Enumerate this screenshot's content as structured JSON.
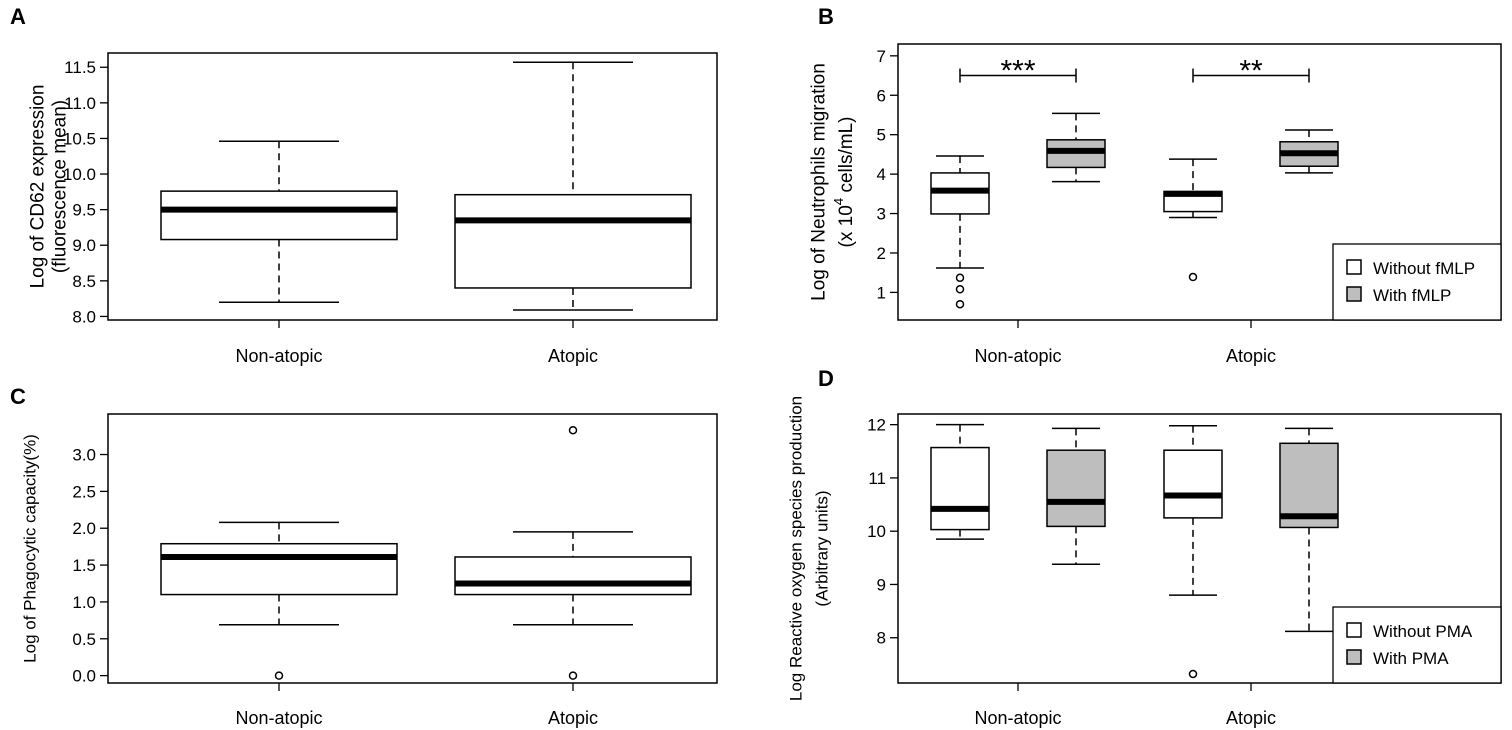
{
  "colors": {
    "white_fill": "#ffffff",
    "gray_fill": "#bebebe",
    "stroke": "#000000"
  },
  "chart_data": [
    {
      "panel": "A",
      "type": "boxplot",
      "ylabel_lines": [
        "Log of CD62 expression",
        "(fluorescence mean)"
      ],
      "categories": [
        "Non-atopic",
        "Atopic"
      ],
      "ylim": [
        7.95,
        11.7
      ],
      "yticks": [
        8.0,
        8.5,
        9.0,
        9.5,
        10.0,
        10.5,
        11.0,
        11.5
      ],
      "ytick_labels": [
        "8.0",
        "8.5",
        "9.0",
        "9.5",
        "10.0",
        "10.5",
        "11.0",
        "11.5"
      ],
      "series": [
        {
          "name": "",
          "fill": "white",
          "boxes": [
            {
              "min": 8.2,
              "q1": 9.08,
              "median": 9.5,
              "q3": 9.76,
              "max": 10.46,
              "outliers": []
            },
            {
              "min": 8.09,
              "q1": 8.4,
              "median": 9.35,
              "q3": 9.71,
              "max": 11.57,
              "outliers": []
            }
          ]
        }
      ],
      "legend": null,
      "annotations": []
    },
    {
      "panel": "B",
      "type": "boxplot",
      "ylabel_lines": [
        "Log of Neutrophils migration",
        "(x 10^4 cells/mL)"
      ],
      "categories": [
        "Non-atopic",
        "Atopic"
      ],
      "ylim": [
        0.3,
        7.3
      ],
      "yticks": [
        1,
        2,
        3,
        4,
        5,
        6,
        7
      ],
      "ytick_labels": [
        "1",
        "2",
        "3",
        "4",
        "5",
        "6",
        "7"
      ],
      "series": [
        {
          "name": "Without fMLP",
          "fill": "white",
          "boxes": [
            {
              "min": 1.62,
              "q1": 2.99,
              "median": 3.58,
              "q3": 4.03,
              "max": 4.46,
              "outliers": [
                1.37,
                1.08,
                0.7
              ]
            },
            {
              "min": 2.9,
              "q1": 3.05,
              "median": 3.5,
              "q3": 3.56,
              "max": 4.38,
              "outliers": [
                1.39
              ]
            }
          ]
        },
        {
          "name": "With fMLP",
          "fill": "gray",
          "boxes": [
            {
              "min": 3.81,
              "q1": 4.17,
              "median": 4.59,
              "q3": 4.87,
              "max": 5.54,
              "outliers": []
            },
            {
              "min": 4.03,
              "q1": 4.2,
              "median": 4.53,
              "q3": 4.82,
              "max": 5.12,
              "outliers": []
            }
          ]
        }
      ],
      "legend": {
        "position": "bottom-right",
        "entries": [
          "Without fMLP",
          "With fMLP"
        ]
      },
      "annotations": [
        {
          "group": 0,
          "text": "***",
          "y": 6.5
        },
        {
          "group": 1,
          "text": "**",
          "y": 6.5
        }
      ]
    },
    {
      "panel": "C",
      "type": "boxplot",
      "ylabel_lines": [
        "Log of Phagocytic capacity(%)"
      ],
      "categories": [
        "Non-atopic",
        "Atopic"
      ],
      "ylim": [
        -0.1,
        3.55
      ],
      "yticks": [
        0.0,
        0.5,
        1.0,
        1.5,
        2.0,
        2.5,
        3.0
      ],
      "ytick_labels": [
        "0.0",
        "0.5",
        "1.0",
        "1.5",
        "2.0",
        "2.5",
        "3.0"
      ],
      "series": [
        {
          "name": "",
          "fill": "white",
          "boxes": [
            {
              "min": 0.69,
              "q1": 1.1,
              "median": 1.61,
              "q3": 1.79,
              "max": 2.08,
              "outliers": [
                0.0
              ]
            },
            {
              "min": 0.69,
              "q1": 1.1,
              "median": 1.25,
              "q3": 1.61,
              "max": 1.95,
              "outliers": [
                3.33,
                0.0
              ]
            }
          ]
        }
      ],
      "legend": null,
      "annotations": []
    },
    {
      "panel": "D",
      "type": "boxplot",
      "ylabel_lines": [
        "Log Reactive oxygen species production",
        "(Arbitrary units)"
      ],
      "categories": [
        "Non-atopic",
        "Atopic"
      ],
      "ylim": [
        7.15,
        12.2
      ],
      "yticks": [
        8,
        9,
        10,
        11,
        12
      ],
      "ytick_labels": [
        "8",
        "9",
        "10",
        "11",
        "12"
      ],
      "series": [
        {
          "name": "Without PMA",
          "fill": "white",
          "boxes": [
            {
              "min": 9.85,
              "q1": 10.03,
              "median": 10.42,
              "q3": 11.57,
              "max": 12.0,
              "outliers": []
            },
            {
              "min": 8.8,
              "q1": 10.25,
              "median": 10.67,
              "q3": 11.52,
              "max": 11.98,
              "outliers": [
                7.32
              ]
            }
          ]
        },
        {
          "name": "With PMA",
          "fill": "gray",
          "boxes": [
            {
              "min": 9.38,
              "q1": 10.09,
              "median": 10.55,
              "q3": 11.52,
              "max": 11.93,
              "outliers": []
            },
            {
              "min": 8.12,
              "q1": 10.07,
              "median": 10.28,
              "q3": 11.65,
              "max": 11.93,
              "outliers": []
            }
          ]
        }
      ],
      "legend": {
        "position": "bottom-right",
        "entries": [
          "Without PMA",
          "With PMA"
        ]
      },
      "annotations": []
    }
  ]
}
